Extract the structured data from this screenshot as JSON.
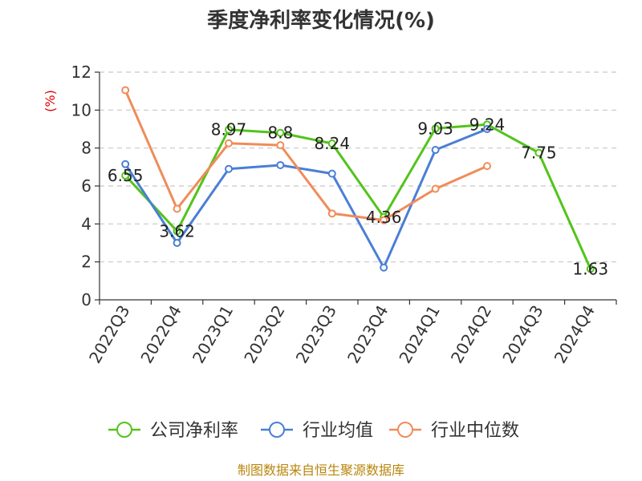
{
  "chart_data": {
    "type": "line",
    "title": "季度净利率变化情况(%)",
    "ylabel": "(%)",
    "xlabel": "",
    "ylim": [
      0,
      12
    ],
    "yticks": [
      0,
      2,
      4,
      6,
      8,
      10,
      12
    ],
    "grid": true,
    "legend_position": "bottom",
    "categories": [
      "2022Q3",
      "2022Q4",
      "2023Q1",
      "2023Q2",
      "2023Q3",
      "2023Q4",
      "2024Q1",
      "2024Q2",
      "2024Q3",
      "2024Q4"
    ],
    "series": [
      {
        "name": "公司净利率",
        "color": "#52c41a",
        "values": [
          6.55,
          3.62,
          8.97,
          8.8,
          8.24,
          4.36,
          9.03,
          9.24,
          7.75,
          1.63
        ],
        "show_labels": true,
        "labels": [
          "6.55",
          "3.62",
          "8.97",
          "8.8",
          "8.24",
          "4.36",
          "9.03",
          "9.24",
          "7.75",
          "1.63"
        ]
      },
      {
        "name": "行业均值",
        "color": "#4a7fd6",
        "values": [
          7.15,
          3.0,
          6.9,
          7.1,
          6.65,
          1.7,
          7.9,
          9.0,
          null,
          null
        ],
        "show_labels": false
      },
      {
        "name": "行业中位数",
        "color": "#f08c5a",
        "values": [
          11.05,
          4.8,
          8.25,
          8.15,
          4.55,
          4.2,
          5.85,
          7.05,
          null,
          null
        ],
        "show_labels": false
      }
    ]
  },
  "source": "制图数据来自恒生聚源数据库"
}
